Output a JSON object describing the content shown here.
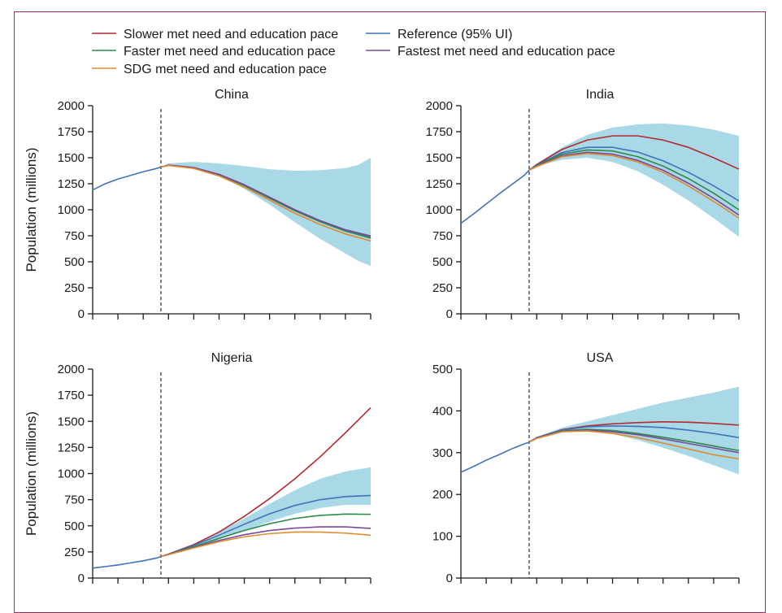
{
  "legend": [
    {
      "key": "slower",
      "label": "Slower met need and education pace",
      "color": "#b22a2f"
    },
    {
      "key": "reference",
      "label": "Reference (95% UI)",
      "color": "#3f73b8"
    },
    {
      "key": "faster",
      "label": "Faster met need and education pace",
      "color": "#2e8b47"
    },
    {
      "key": "fastest",
      "label": "Fastest met need and education pace",
      "color": "#7b4a9c"
    },
    {
      "key": "sdg",
      "label": "SDG met need and education pace",
      "color": "#e08a2e"
    }
  ],
  "colors": {
    "ui_band": "#a9d8e6",
    "axis": "#1a1a1a",
    "forecast_line": "#2b3a55"
  },
  "chart_data": [
    {
      "type": "line",
      "title": "China",
      "ylabel": "Population (millions)",
      "ylim": [
        0,
        2000
      ],
      "yticks": [
        0,
        250,
        500,
        750,
        1000,
        1250,
        1500,
        1750,
        2000
      ],
      "xlim": [
        1990,
        2100
      ],
      "x_tick_labels_shown": false,
      "forecast_start": 2017,
      "band": {
        "x": [
          2017,
          2020,
          2030,
          2040,
          2050,
          2060,
          2070,
          2080,
          2090,
          2095,
          2100
        ],
        "lower": [
          1410,
          1430,
          1400,
          1330,
          1200,
          1050,
          880,
          720,
          580,
          510,
          460
        ],
        "upper": [
          1410,
          1445,
          1460,
          1445,
          1420,
          1390,
          1375,
          1380,
          1400,
          1430,
          1500
        ]
      },
      "history": {
        "x": [
          1990,
          1995,
          2000,
          2005,
          2010,
          2015,
          2017
        ],
        "values": [
          1190,
          1250,
          1295,
          1330,
          1365,
          1395,
          1410
        ]
      },
      "series": [
        {
          "key": "slower",
          "x": [
            2017,
            2020,
            2030,
            2040,
            2050,
            2060,
            2070,
            2080,
            2090,
            2100
          ],
          "values": [
            1410,
            1428,
            1405,
            1340,
            1240,
            1120,
            1000,
            895,
            805,
            745
          ]
        },
        {
          "key": "reference",
          "x": [
            2017,
            2020,
            2030,
            2040,
            2050,
            2060,
            2070,
            2080,
            2090,
            2100
          ],
          "values": [
            1410,
            1428,
            1404,
            1338,
            1237,
            1116,
            995,
            890,
            800,
            735
          ]
        },
        {
          "key": "faster",
          "x": [
            2017,
            2020,
            2030,
            2040,
            2050,
            2060,
            2070,
            2080,
            2090,
            2100
          ],
          "values": [
            1410,
            1427,
            1402,
            1335,
            1232,
            1110,
            990,
            885,
            795,
            728
          ]
        },
        {
          "key": "fastest",
          "x": [
            2017,
            2020,
            2030,
            2040,
            2050,
            2060,
            2070,
            2080,
            2090,
            2100
          ],
          "values": [
            1410,
            1428,
            1405,
            1340,
            1240,
            1120,
            1000,
            895,
            808,
            748
          ]
        },
        {
          "key": "sdg",
          "x": [
            2017,
            2020,
            2030,
            2040,
            2050,
            2060,
            2070,
            2080,
            2090,
            2100
          ],
          "values": [
            1410,
            1425,
            1397,
            1325,
            1218,
            1092,
            966,
            858,
            768,
            700
          ]
        }
      ]
    },
    {
      "type": "line",
      "title": "India",
      "ylabel": "",
      "ylim": [
        0,
        2000
      ],
      "yticks": [
        0,
        250,
        500,
        750,
        1000,
        1250,
        1500,
        1750,
        2000
      ],
      "xlim": [
        1990,
        2100
      ],
      "x_tick_labels_shown": false,
      "forecast_start": 2017,
      "band": {
        "x": [
          2017,
          2020,
          2030,
          2040,
          2050,
          2060,
          2070,
          2080,
          2090,
          2100
        ],
        "lower": [
          1380,
          1420,
          1480,
          1500,
          1460,
          1370,
          1240,
          1090,
          920,
          740
        ],
        "upper": [
          1380,
          1440,
          1600,
          1720,
          1790,
          1820,
          1830,
          1810,
          1770,
          1710
        ]
      },
      "history": {
        "x": [
          1990,
          1995,
          2000,
          2005,
          2010,
          2015,
          2017
        ],
        "values": [
          870,
          960,
          1055,
          1150,
          1240,
          1330,
          1380
        ]
      },
      "series": [
        {
          "key": "slower",
          "x": [
            2017,
            2020,
            2030,
            2040,
            2050,
            2060,
            2070,
            2080,
            2090,
            2100
          ],
          "values": [
            1380,
            1435,
            1580,
            1670,
            1710,
            1710,
            1670,
            1600,
            1500,
            1390
          ]
        },
        {
          "key": "reference",
          "x": [
            2017,
            2020,
            2030,
            2040,
            2050,
            2060,
            2070,
            2080,
            2090,
            2100
          ],
          "values": [
            1380,
            1430,
            1550,
            1600,
            1600,
            1555,
            1470,
            1360,
            1230,
            1085
          ]
        },
        {
          "key": "faster",
          "x": [
            2017,
            2020,
            2030,
            2040,
            2050,
            2060,
            2070,
            2080,
            2090,
            2100
          ],
          "values": [
            1380,
            1425,
            1535,
            1575,
            1565,
            1510,
            1420,
            1300,
            1160,
            1000
          ]
        },
        {
          "key": "fastest",
          "x": [
            2017,
            2020,
            2030,
            2040,
            2050,
            2060,
            2070,
            2080,
            2090,
            2100
          ],
          "values": [
            1380,
            1420,
            1520,
            1552,
            1535,
            1475,
            1380,
            1255,
            1110,
            950
          ]
        },
        {
          "key": "sdg",
          "x": [
            2017,
            2020,
            2030,
            2040,
            2050,
            2060,
            2070,
            2080,
            2090,
            2100
          ],
          "values": [
            1380,
            1415,
            1510,
            1540,
            1520,
            1460,
            1360,
            1230,
            1080,
            920
          ]
        }
      ]
    },
    {
      "type": "line",
      "title": "Nigeria",
      "ylabel": "Population (millions)",
      "ylim": [
        0,
        2000
      ],
      "yticks": [
        0,
        250,
        500,
        750,
        1000,
        1250,
        1500,
        1750,
        2000
      ],
      "xlim": [
        1990,
        2100
      ],
      "x_tick_labels_shown": false,
      "forecast_start": 2017,
      "band": {
        "x": [
          2017,
          2020,
          2030,
          2040,
          2050,
          2060,
          2070,
          2080,
          2090,
          2100
        ],
        "lower": [
          205,
          225,
          290,
          370,
          450,
          540,
          615,
          670,
          700,
          700
        ],
        "upper": [
          205,
          230,
          320,
          440,
          570,
          710,
          840,
          950,
          1020,
          1060
        ]
      },
      "history": {
        "x": [
          1990,
          1995,
          2000,
          2005,
          2010,
          2015,
          2017
        ],
        "values": [
          95,
          110,
          125,
          145,
          165,
          190,
          205
        ]
      },
      "series": [
        {
          "key": "slower",
          "x": [
            2017,
            2020,
            2030,
            2040,
            2050,
            2060,
            2070,
            2080,
            2090,
            2100
          ],
          "values": [
            205,
            230,
            320,
            440,
            590,
            760,
            950,
            1160,
            1390,
            1630
          ]
        },
        {
          "key": "reference",
          "x": [
            2017,
            2020,
            2030,
            2040,
            2050,
            2060,
            2070,
            2080,
            2090,
            2100
          ],
          "values": [
            205,
            228,
            312,
            410,
            515,
            615,
            695,
            750,
            780,
            790
          ]
        },
        {
          "key": "faster",
          "x": [
            2017,
            2020,
            2030,
            2040,
            2050,
            2060,
            2070,
            2080,
            2090,
            2100
          ],
          "values": [
            205,
            226,
            300,
            380,
            455,
            520,
            570,
            600,
            612,
            610
          ]
        },
        {
          "key": "fastest",
          "x": [
            2017,
            2020,
            2030,
            2040,
            2050,
            2060,
            2070,
            2080,
            2090,
            2100
          ],
          "values": [
            205,
            225,
            293,
            360,
            415,
            455,
            478,
            490,
            490,
            475
          ]
        },
        {
          "key": "sdg",
          "x": [
            2017,
            2020,
            2030,
            2040,
            2050,
            2060,
            2070,
            2080,
            2090,
            2100
          ],
          "values": [
            205,
            224,
            288,
            348,
            395,
            425,
            440,
            440,
            430,
            410
          ]
        }
      ]
    },
    {
      "type": "line",
      "title": "USA",
      "ylabel": "",
      "ylim": [
        0,
        500
      ],
      "yticks": [
        0,
        100,
        200,
        300,
        400,
        500
      ],
      "xlim": [
        1990,
        2100
      ],
      "x_tick_labels_shown": false,
      "forecast_start": 2017,
      "band": {
        "x": [
          2017,
          2020,
          2030,
          2040,
          2050,
          2060,
          2070,
          2080,
          2090,
          2100
        ],
        "lower": [
          325,
          333,
          350,
          352,
          345,
          330,
          312,
          292,
          270,
          248
        ],
        "upper": [
          325,
          337,
          360,
          375,
          390,
          405,
          420,
          432,
          444,
          458
        ]
      },
      "history": {
        "x": [
          1990,
          1995,
          2000,
          2005,
          2010,
          2015,
          2017
        ],
        "values": [
          253,
          267,
          282,
          295,
          309,
          321,
          325
        ]
      },
      "series": [
        {
          "key": "slower",
          "x": [
            2017,
            2020,
            2030,
            2040,
            2050,
            2060,
            2070,
            2080,
            2090,
            2100
          ],
          "values": [
            325,
            336,
            355,
            364,
            369,
            372,
            374,
            373,
            370,
            366
          ]
        },
        {
          "key": "reference",
          "x": [
            2017,
            2020,
            2030,
            2040,
            2050,
            2060,
            2070,
            2080,
            2090,
            2100
          ],
          "values": [
            325,
            336,
            354,
            362,
            364,
            363,
            360,
            354,
            346,
            336
          ]
        },
        {
          "key": "faster",
          "x": [
            2017,
            2020,
            2030,
            2040,
            2050,
            2060,
            2070,
            2080,
            2090,
            2100
          ],
          "values": [
            325,
            335,
            352,
            356,
            353,
            346,
            337,
            327,
            316,
            305
          ]
        },
        {
          "key": "fastest",
          "x": [
            2017,
            2020,
            2030,
            2040,
            2050,
            2060,
            2070,
            2080,
            2090,
            2100
          ],
          "values": [
            325,
            335,
            351,
            354,
            350,
            343,
            333,
            322,
            311,
            300
          ]
        },
        {
          "key": "sdg",
          "x": [
            2017,
            2020,
            2030,
            2040,
            2050,
            2060,
            2070,
            2080,
            2090,
            2100
          ],
          "values": [
            325,
            334,
            350,
            352,
            346,
            336,
            323,
            309,
            295,
            285
          ]
        }
      ]
    }
  ]
}
